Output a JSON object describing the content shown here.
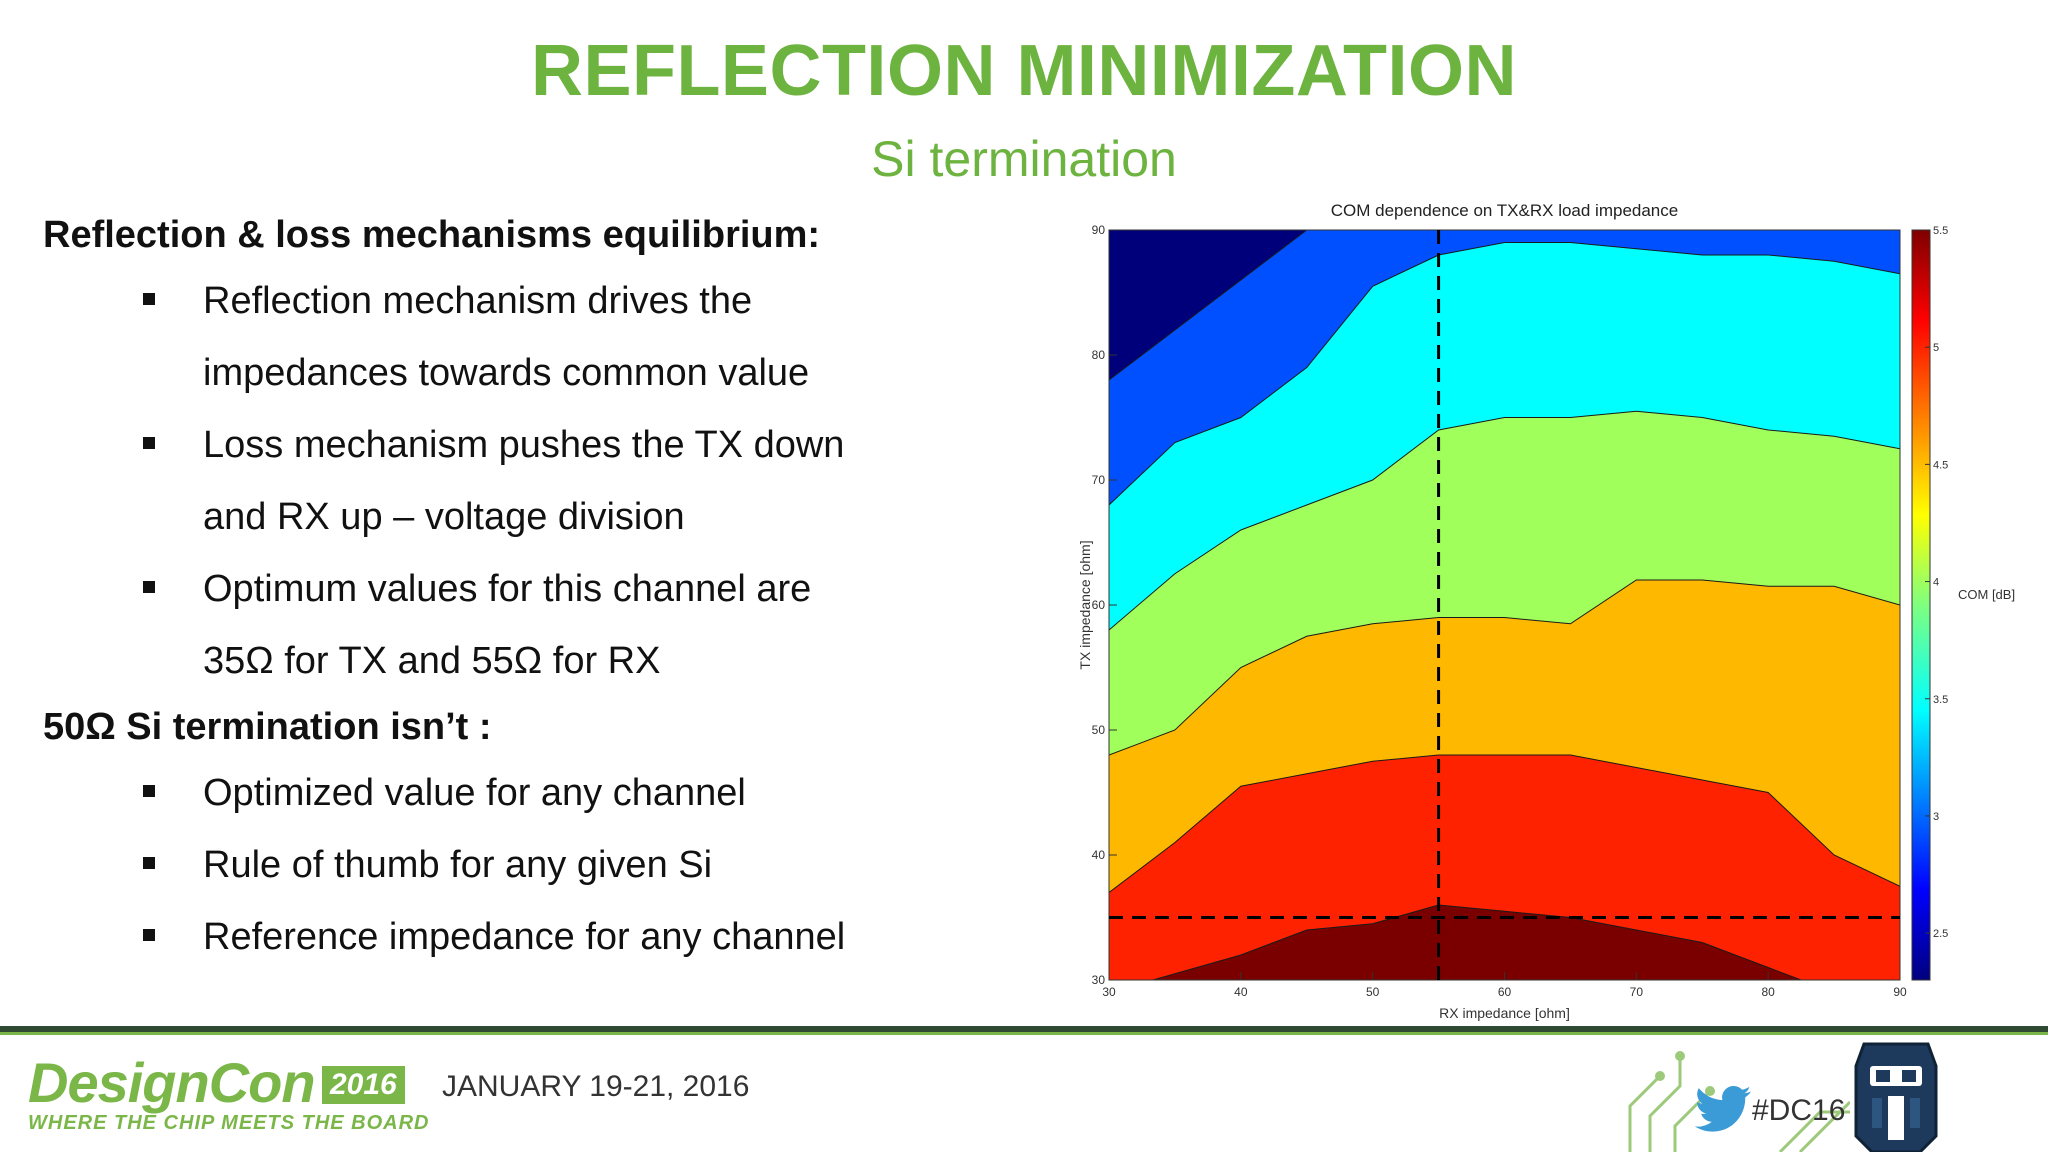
{
  "slide": {
    "title": "REFLECTION MINIMIZATION",
    "subtitle": "Si termination"
  },
  "content": {
    "section1": {
      "heading": "Reflection & loss mechanisms equilibrium:",
      "bullets": [
        "Reflection mechanism drives the",
        "impedances towards common value",
        "Loss mechanism pushes the TX down",
        "and RX up – voltage division",
        "Optimum values for this channel are",
        "35Ω for TX and 55Ω for RX"
      ]
    },
    "section2": {
      "heading": "50Ω Si termination isn’t :",
      "bullets": [
        "Optimized value for any channel",
        "Rule of thumb for any given Si",
        "Reference impedance for any channel"
      ]
    }
  },
  "chart_data": {
    "type": "heatmap",
    "title": "COM dependence on TX&RX load impedance",
    "xlabel": "RX impedance [ohm]",
    "ylabel": "TX impedance [ohm]",
    "colorbar_label": "COM [dB]",
    "xlim": [
      30,
      90
    ],
    "ylim": [
      30,
      90
    ],
    "x_ticks": [
      "30",
      "40",
      "50",
      "60",
      "70",
      "80",
      "90"
    ],
    "y_ticks": [
      "30",
      "40",
      "50",
      "60",
      "70",
      "80",
      "90"
    ],
    "colorbar_range": [
      2.3,
      5.5
    ],
    "colorbar_ticks": [
      "2.5",
      "3",
      "3.5",
      "4",
      "4.5",
      "5",
      "5.5"
    ],
    "optimum_marker": {
      "rx": 55,
      "tx": 35
    },
    "x_samples": [
      30,
      35,
      40,
      45,
      50,
      55,
      60,
      65,
      70,
      75,
      80,
      85,
      90
    ],
    "levels": [
      {
        "com": 2.6,
        "color": "#00007a",
        "boundary_tx": null
      },
      {
        "com": 3.0,
        "color": "#0050ff",
        "boundary_tx": [
          78,
          82,
          86,
          90,
          92,
          92,
          92,
          92,
          92,
          92,
          92,
          92,
          92
        ]
      },
      {
        "com": 3.5,
        "color": "#00ffff",
        "boundary_tx": [
          68,
          73,
          75,
          79,
          85.5,
          88,
          89,
          89,
          88.5,
          88,
          88,
          87.5,
          86.5
        ]
      },
      {
        "com": 4.0,
        "color": "#a0ff5a",
        "boundary_tx": [
          58,
          62.5,
          66,
          68,
          70,
          74,
          75,
          75,
          75.5,
          75,
          74,
          73.5,
          72.5
        ]
      },
      {
        "com": 4.5,
        "color": "#ffb800",
        "boundary_tx": [
          48,
          50,
          55,
          57.5,
          58.5,
          59,
          59,
          58.5,
          62,
          62,
          61.5,
          61.5,
          60
        ]
      },
      {
        "com": 5.0,
        "color": "#ff2200",
        "boundary_tx": [
          37,
          41,
          45.5,
          46.5,
          47.5,
          48,
          48,
          48,
          47,
          46,
          45,
          40,
          37.5
        ]
      },
      {
        "com": 5.3,
        "color": "#7a0000",
        "boundary_tx": [
          29,
          30.5,
          32,
          34,
          34.5,
          36,
          35.5,
          35,
          34,
          33,
          31,
          29,
          29
        ]
      }
    ]
  },
  "footer": {
    "brand": "DesignCon",
    "year": "2016",
    "tagline": "WHERE THE CHIP MEETS THE BOARD",
    "date": "JANUARY 19-21, 2016",
    "hashtag": "#DC16",
    "colors": {
      "primary": "#7ab648",
      "dark": "#2f4a33"
    },
    "icons": [
      "twitter-bird-icon",
      "robot-mascot-icon",
      "circuit-trace-graphic"
    ]
  }
}
